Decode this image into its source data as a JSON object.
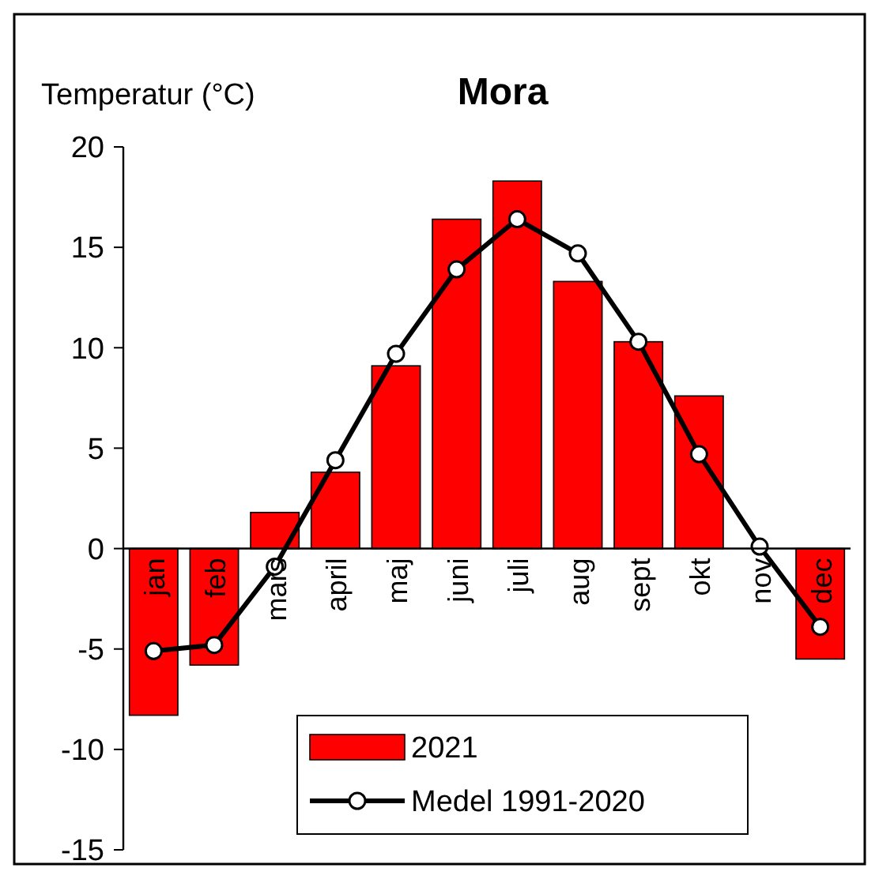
{
  "chart_data": {
    "type": "bar",
    "title": "Mora",
    "ylabel": "Temperatur (°C)",
    "categories": [
      "jan",
      "feb",
      "mars",
      "april",
      "maj",
      "juni",
      "juli",
      "aug",
      "sept",
      "okt",
      "nov",
      "dec"
    ],
    "series": [
      {
        "name": "2021",
        "color": "#ff0000",
        "values": [
          -8.3,
          -5.8,
          1.8,
          3.8,
          9.1,
          16.4,
          18.3,
          13.3,
          10.3,
          7.6,
          null,
          -5.5
        ]
      },
      {
        "name": "Medel 1991-2020",
        "type": "line",
        "color": "#000000",
        "marker": "circle",
        "values": [
          -5.1,
          -4.8,
          -0.9,
          4.4,
          9.7,
          13.9,
          16.4,
          14.7,
          10.3,
          4.7,
          0.1,
          -3.9
        ]
      }
    ],
    "ylim": [
      -15,
      20
    ],
    "yticks": [
      -15,
      -10,
      -5,
      0,
      5,
      10,
      15,
      20
    ],
    "legend": "bottom",
    "grid": false
  }
}
